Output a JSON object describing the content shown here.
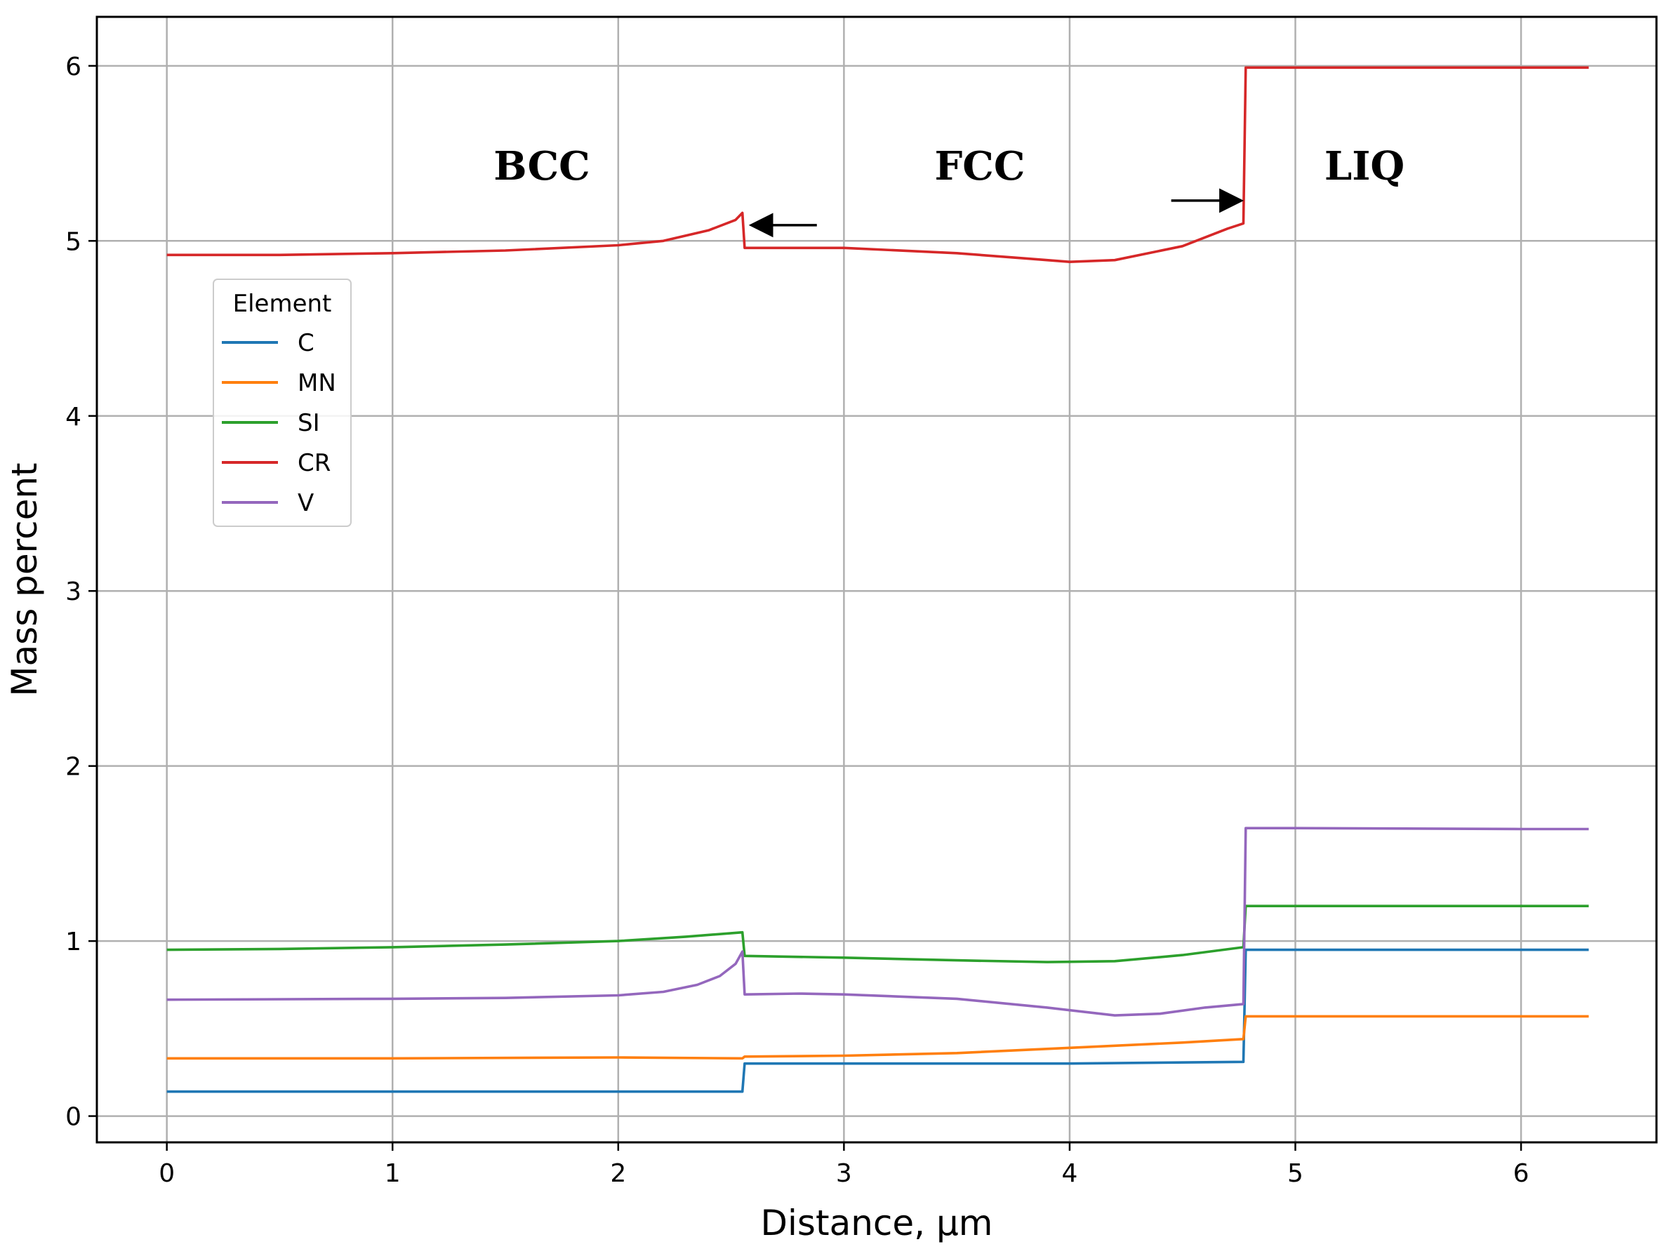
{
  "chart_data": {
    "type": "line",
    "title": "",
    "xlabel": "Distance, µm",
    "ylabel": "Mass percent",
    "xlim": [
      -0.31,
      6.6
    ],
    "ylim": [
      -0.15,
      6.28
    ],
    "xticks": [
      0,
      1,
      2,
      3,
      4,
      5,
      6
    ],
    "yticks": [
      0,
      1,
      2,
      3,
      4,
      5,
      6
    ],
    "grid": true,
    "legend": {
      "title": "Element",
      "placement": "upper-left"
    },
    "regions": [
      "BCC",
      "FCC",
      "LIQ"
    ],
    "arrows": [
      {
        "from": [
          2.88,
          5.09
        ],
        "to": [
          2.6,
          5.09
        ],
        "color": "#000000"
      },
      {
        "from": [
          4.45,
          5.23
        ],
        "to": [
          4.75,
          5.23
        ],
        "color": "#000000"
      }
    ],
    "series": [
      {
        "name": "C",
        "color": "#1f77b4",
        "points": [
          [
            0,
            0.14
          ],
          [
            1,
            0.14
          ],
          [
            2,
            0.14
          ],
          [
            2.55,
            0.14
          ],
          [
            2.56,
            0.3
          ],
          [
            3,
            0.3
          ],
          [
            4,
            0.3
          ],
          [
            4.77,
            0.31
          ],
          [
            4.78,
            0.95
          ],
          [
            5,
            0.95
          ],
          [
            6,
            0.95
          ],
          [
            6.3,
            0.95
          ]
        ]
      },
      {
        "name": "MN",
        "color": "#ff7f0e",
        "points": [
          [
            0,
            0.33
          ],
          [
            1,
            0.33
          ],
          [
            2,
            0.335
          ],
          [
            2.55,
            0.33
          ],
          [
            2.56,
            0.34
          ],
          [
            3,
            0.345
          ],
          [
            3.5,
            0.36
          ],
          [
            4,
            0.39
          ],
          [
            4.5,
            0.42
          ],
          [
            4.77,
            0.44
          ],
          [
            4.78,
            0.57
          ],
          [
            5,
            0.57
          ],
          [
            6,
            0.57
          ],
          [
            6.3,
            0.57
          ]
        ]
      },
      {
        "name": "SI",
        "color": "#2ca02c",
        "points": [
          [
            0,
            0.95
          ],
          [
            0.5,
            0.955
          ],
          [
            1,
            0.965
          ],
          [
            1.5,
            0.98
          ],
          [
            2,
            1.0
          ],
          [
            2.3,
            1.025
          ],
          [
            2.55,
            1.05
          ],
          [
            2.56,
            0.915
          ],
          [
            3,
            0.905
          ],
          [
            3.5,
            0.89
          ],
          [
            3.9,
            0.88
          ],
          [
            4.2,
            0.885
          ],
          [
            4.5,
            0.92
          ],
          [
            4.77,
            0.965
          ],
          [
            4.78,
            1.2
          ],
          [
            5,
            1.2
          ],
          [
            6,
            1.2
          ],
          [
            6.3,
            1.2
          ]
        ]
      },
      {
        "name": "CR",
        "color": "#d62728",
        "points": [
          [
            0,
            4.92
          ],
          [
            0.5,
            4.92
          ],
          [
            1,
            4.93
          ],
          [
            1.5,
            4.945
          ],
          [
            2,
            4.975
          ],
          [
            2.2,
            5.0
          ],
          [
            2.4,
            5.06
          ],
          [
            2.52,
            5.12
          ],
          [
            2.55,
            5.16
          ],
          [
            2.56,
            4.96
          ],
          [
            3,
            4.96
          ],
          [
            3.5,
            4.93
          ],
          [
            3.8,
            4.9
          ],
          [
            4.0,
            4.88
          ],
          [
            4.2,
            4.89
          ],
          [
            4.5,
            4.97
          ],
          [
            4.7,
            5.07
          ],
          [
            4.77,
            5.1
          ],
          [
            4.78,
            5.99
          ],
          [
            5,
            5.99
          ],
          [
            6,
            5.99
          ],
          [
            6.3,
            5.99
          ]
        ]
      },
      {
        "name": "V",
        "color": "#9467bd",
        "points": [
          [
            0,
            0.665
          ],
          [
            1,
            0.67
          ],
          [
            1.5,
            0.675
          ],
          [
            2,
            0.69
          ],
          [
            2.2,
            0.71
          ],
          [
            2.35,
            0.75
          ],
          [
            2.45,
            0.8
          ],
          [
            2.52,
            0.87
          ],
          [
            2.55,
            0.94
          ],
          [
            2.56,
            0.695
          ],
          [
            2.8,
            0.7
          ],
          [
            3,
            0.695
          ],
          [
            3.5,
            0.67
          ],
          [
            3.9,
            0.62
          ],
          [
            4.2,
            0.575
          ],
          [
            4.4,
            0.585
          ],
          [
            4.6,
            0.62
          ],
          [
            4.77,
            0.64
          ],
          [
            4.78,
            1.645
          ],
          [
            5,
            1.645
          ],
          [
            6,
            1.64
          ],
          [
            6.3,
            1.64
          ]
        ]
      }
    ]
  }
}
